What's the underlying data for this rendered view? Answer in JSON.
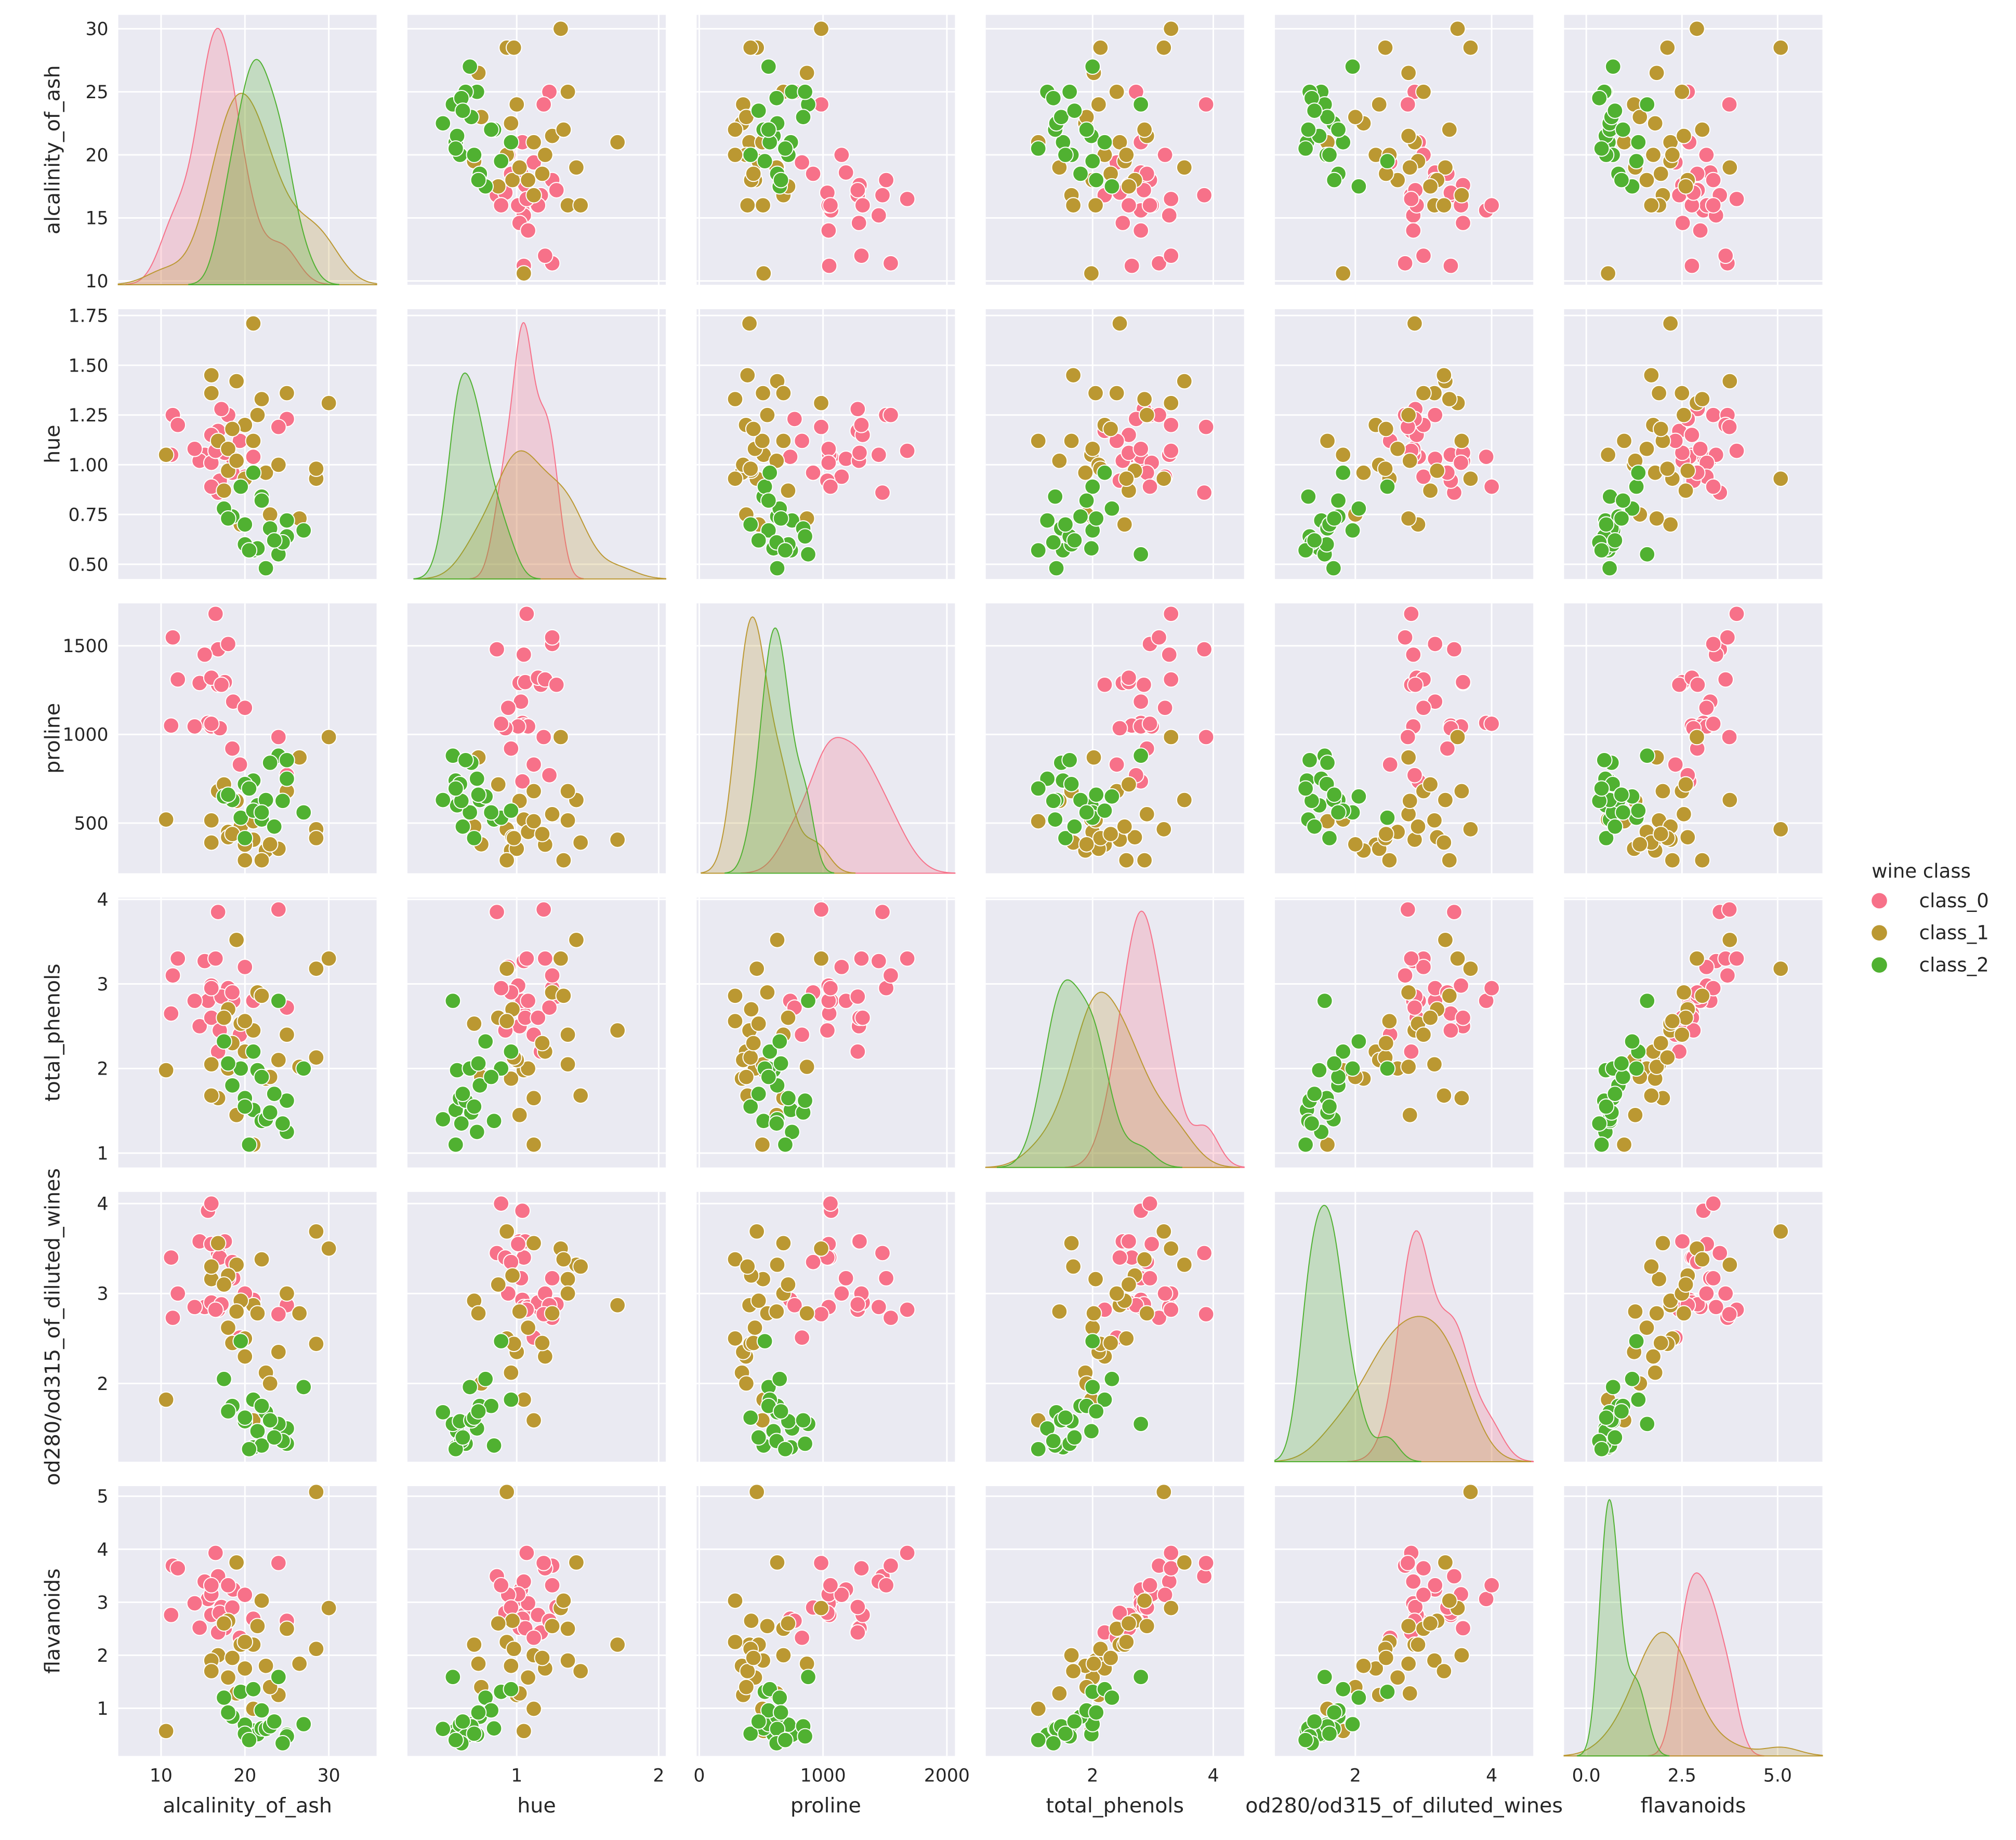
{
  "chart_data": {
    "type": "scatter",
    "subtype": "pairplot",
    "diagonal": "kde",
    "grid": true,
    "background_color": "#eaeaf2",
    "legend": {
      "title": "wine class",
      "placement": "right",
      "entries": [
        "class_0",
        "class_1",
        "class_2"
      ]
    },
    "class_colors": {
      "class_0": "#f77189",
      "class_1": "#bb9832",
      "class_2": "#50b131"
    },
    "variables": [
      {
        "name": "alcalinity_of_ash",
        "range": [
          4.9,
          35.7
        ],
        "yrange": [
          9.7,
          31.1
        ],
        "xticks": [
          {
            "v": 10,
            "label": "10"
          },
          {
            "v": 20,
            "label": "20"
          },
          {
            "v": 30,
            "label": "30"
          }
        ],
        "yticks": [
          {
            "v": 10,
            "label": "10"
          },
          {
            "v": 15,
            "label": "15"
          },
          {
            "v": 20,
            "label": "20"
          },
          {
            "v": 25,
            "label": "25"
          },
          {
            "v": 30,
            "label": "30"
          }
        ]
      },
      {
        "name": "hue",
        "range": [
          0.23,
          2.05
        ],
        "yrange": [
          0.426,
          1.782
        ],
        "xticks": [
          {
            "v": 1,
            "label": "1"
          },
          {
            "v": 2,
            "label": "2"
          }
        ],
        "yticks": [
          {
            "v": 0.5,
            "label": "0.50"
          },
          {
            "v": 0.75,
            "label": "0.75"
          },
          {
            "v": 1.0,
            "label": "1.00"
          },
          {
            "v": 1.25,
            "label": "1.25"
          },
          {
            "v": 1.5,
            "label": "1.50"
          },
          {
            "v": 1.75,
            "label": "1.75"
          }
        ]
      },
      {
        "name": "proline",
        "range": [
          -21,
          2065
        ],
        "yrange": [
          217,
          1739
        ],
        "xticks": [
          {
            "v": 0,
            "label": "0"
          },
          {
            "v": 1000,
            "label": "1000"
          },
          {
            "v": 2000,
            "label": "2000"
          }
        ],
        "yticks": [
          {
            "v": 500,
            "label": "500"
          },
          {
            "v": 1000,
            "label": "1000"
          },
          {
            "v": 1500,
            "label": "1500"
          }
        ]
      },
      {
        "name": "total_phenols",
        "range": [
          0.23,
          4.51
        ],
        "yrange": [
          0.83,
          4.02
        ],
        "xticks": [
          {
            "v": 2,
            "label": "2"
          },
          {
            "v": 4,
            "label": "4"
          }
        ],
        "yticks": [
          {
            "v": 1,
            "label": "1"
          },
          {
            "v": 2,
            "label": "2"
          },
          {
            "v": 3,
            "label": "3"
          },
          {
            "v": 4,
            "label": "4"
          }
        ]
      },
      {
        "name": "od280/od315_of_diluted_wines",
        "range": [
          0.82,
          4.61
        ],
        "yrange": [
          1.13,
          4.13
        ],
        "xticks": [
          {
            "v": 2,
            "label": "2"
          },
          {
            "v": 4,
            "label": "4"
          }
        ],
        "yticks": [
          {
            "v": 2,
            "label": "2"
          },
          {
            "v": 3,
            "label": "3"
          },
          {
            "v": 4,
            "label": "4"
          }
        ]
      },
      {
        "name": "flavanoids",
        "range": [
          -0.58,
          6.17
        ],
        "yrange": [
          0.1,
          5.19
        ],
        "xticks": [
          {
            "v": 0,
            "label": "0.0"
          },
          {
            "v": 2.5,
            "label": "2.5"
          },
          {
            "v": 5,
            "label": "5.0"
          }
        ],
        "yticks": [
          {
            "v": 1,
            "label": "1"
          },
          {
            "v": 2,
            "label": "2"
          },
          {
            "v": 3,
            "label": "3"
          },
          {
            "v": 4,
            "label": "4"
          },
          {
            "v": 5,
            "label": "5"
          }
        ]
      }
    ],
    "columns": [
      "alcalinity_of_ash",
      "hue",
      "proline",
      "total_phenols",
      "od280/od315_of_diluted_wines",
      "flavanoids"
    ],
    "points": {
      "class_0": [
        [
          15.6,
          1.04,
          1065,
          2.8,
          3.92,
          3.06
        ],
        [
          11.2,
          1.05,
          1050,
          2.65,
          3.4,
          2.76
        ],
        [
          18.6,
          1.03,
          1185,
          2.8,
          3.17,
          3.24
        ],
        [
          16.8,
          0.86,
          1480,
          3.85,
          3.45,
          3.49
        ],
        [
          21.0,
          1.04,
          735,
          2.8,
          2.93,
          2.69
        ],
        [
          15.2,
          1.05,
          1450,
          3.27,
          2.85,
          3.39
        ],
        [
          14.6,
          1.02,
          1290,
          2.5,
          3.58,
          2.52
        ],
        [
          17.6,
          1.06,
          1295,
          2.6,
          3.58,
          2.51
        ],
        [
          14.0,
          1.08,
          1045,
          2.8,
          2.85,
          2.98
        ],
        [
          16.0,
          1.01,
          1045,
          2.98,
          3.55,
          3.15
        ],
        [
          18.0,
          1.25,
          1510,
          2.95,
          3.17,
          3.32
        ],
        [
          16.8,
          1.17,
          1280,
          2.2,
          2.82,
          2.43
        ],
        [
          16.0,
          1.15,
          1320,
          2.6,
          2.9,
          2.76
        ],
        [
          11.4,
          1.25,
          1547,
          3.1,
          2.73,
          3.69
        ],
        [
          12.0,
          1.2,
          1310,
          3.3,
          3.0,
          3.64
        ],
        [
          17.2,
          1.28,
          1280,
          2.85,
          2.88,
          2.91
        ],
        [
          20.0,
          0.94,
          1150,
          3.2,
          3.0,
          3.14
        ],
        [
          16.5,
          1.07,
          1680,
          3.3,
          2.82,
          3.93
        ],
        [
          25.0,
          1.23,
          770,
          2.72,
          2.87,
          2.65
        ],
        [
          17.0,
          0.92,
          1035,
          2.45,
          3.4,
          2.8
        ],
        [
          19.4,
          1.12,
          830,
          2.4,
          2.51,
          2.33
        ],
        [
          18.5,
          0.96,
          920,
          2.9,
          3.35,
          2.9
        ],
        [
          24.0,
          1.19,
          985,
          3.88,
          2.77,
          3.74
        ],
        [
          16.0,
          0.89,
          1060,
          2.95,
          4.0,
          3.32
        ]
      ],
      "class_1": [
        [
          10.6,
          1.05,
          520,
          1.98,
          1.82,
          0.57
        ],
        [
          16.8,
          1.12,
          680,
          1.65,
          3.56,
          2.0
        ],
        [
          18.0,
          1.08,
          450,
          2.0,
          2.62,
          1.58
        ],
        [
          19.0,
          1.42,
          630,
          3.52,
          3.32,
          3.75
        ],
        [
          28.5,
          0.93,
          465,
          3.18,
          3.69,
          5.08
        ],
        [
          30.0,
          1.31,
          985,
          3.3,
          3.5,
          2.89
        ],
        [
          21.0,
          1.71,
          406,
          2.45,
          2.87,
          2.2
        ],
        [
          16.0,
          1.36,
          515,
          2.05,
          3.16,
          1.9
        ],
        [
          20.0,
          1.2,
          378,
          2.2,
          2.3,
          1.75
        ],
        [
          18.0,
          0.97,
          420,
          2.7,
          3.2,
          2.65
        ],
        [
          22.5,
          0.96,
          345,
          1.88,
          2.12,
          1.8
        ],
        [
          19.5,
          0.7,
          480,
          2.53,
          2.92,
          2.2
        ],
        [
          24.0,
          1.0,
          355,
          2.1,
          2.35,
          1.25
        ],
        [
          21.5,
          1.25,
          550,
          2.9,
          2.78,
          2.55
        ],
        [
          25.0,
          1.36,
          680,
          2.4,
          3.0,
          2.5
        ],
        [
          17.5,
          0.87,
          718,
          2.6,
          3.1,
          2.6
        ],
        [
          19.0,
          1.02,
          625,
          1.45,
          2.8,
          1.28
        ],
        [
          22.0,
          1.33,
          290,
          2.86,
          3.38,
          3.03
        ],
        [
          26.5,
          0.73,
          870,
          2.02,
          2.78,
          1.84
        ],
        [
          16.0,
          1.45,
          390,
          1.68,
          3.3,
          1.7
        ],
        [
          20.0,
          0.93,
          290,
          2.56,
          2.5,
          2.25
        ],
        [
          21.0,
          1.12,
          510,
          1.1,
          1.59,
          0.99
        ],
        [
          28.5,
          0.98,
          415,
          2.13,
          2.44,
          2.12
        ],
        [
          18.5,
          1.18,
          438,
          2.3,
          2.45,
          1.95
        ],
        [
          23.0,
          0.75,
          380,
          1.9,
          2.0,
          1.4
        ]
      ],
      "class_2": [
        [
          21.0,
          0.57,
          740,
          1.51,
          1.29,
          0.58
        ],
        [
          25.0,
          0.72,
          750,
          1.25,
          1.5,
          0.5
        ],
        [
          21.5,
          0.58,
          600,
          1.98,
          1.47,
          0.51
        ],
        [
          22.0,
          0.84,
          520,
          1.38,
          1.31,
          0.62
        ],
        [
          24.0,
          0.55,
          880,
          2.8,
          1.55,
          1.59
        ],
        [
          20.0,
          0.6,
          720,
          1.65,
          1.58,
          0.69
        ],
        [
          27.0,
          0.67,
          560,
          2.0,
          1.96,
          0.7
        ],
        [
          18.5,
          0.74,
          630,
          1.8,
          1.75,
          0.84
        ],
        [
          22.5,
          0.48,
          630,
          1.4,
          1.68,
          0.61
        ],
        [
          19.5,
          0.89,
          530,
          2.0,
          2.47,
          1.31
        ],
        [
          23.0,
          0.68,
          840,
          1.48,
          1.59,
          0.66
        ],
        [
          25.0,
          0.64,
          855,
          1.62,
          1.33,
          0.47
        ],
        [
          20.0,
          0.7,
          415,
          1.55,
          1.62,
          0.52
        ],
        [
          21.0,
          0.96,
          570,
          2.2,
          1.82,
          1.36
        ],
        [
          24.5,
          0.61,
          625,
          1.35,
          1.36,
          0.34
        ],
        [
          17.5,
          0.78,
          650,
          2.32,
          2.05,
          1.2
        ],
        [
          22.0,
          0.82,
          560,
          1.9,
          1.75,
          0.96
        ],
        [
          20.5,
          0.57,
          695,
          1.1,
          1.27,
          0.4
        ],
        [
          23.5,
          0.62,
          480,
          1.7,
          1.4,
          0.75
        ],
        [
          18.0,
          0.73,
          660,
          2.06,
          1.69,
          0.92
        ]
      ]
    }
  }
}
